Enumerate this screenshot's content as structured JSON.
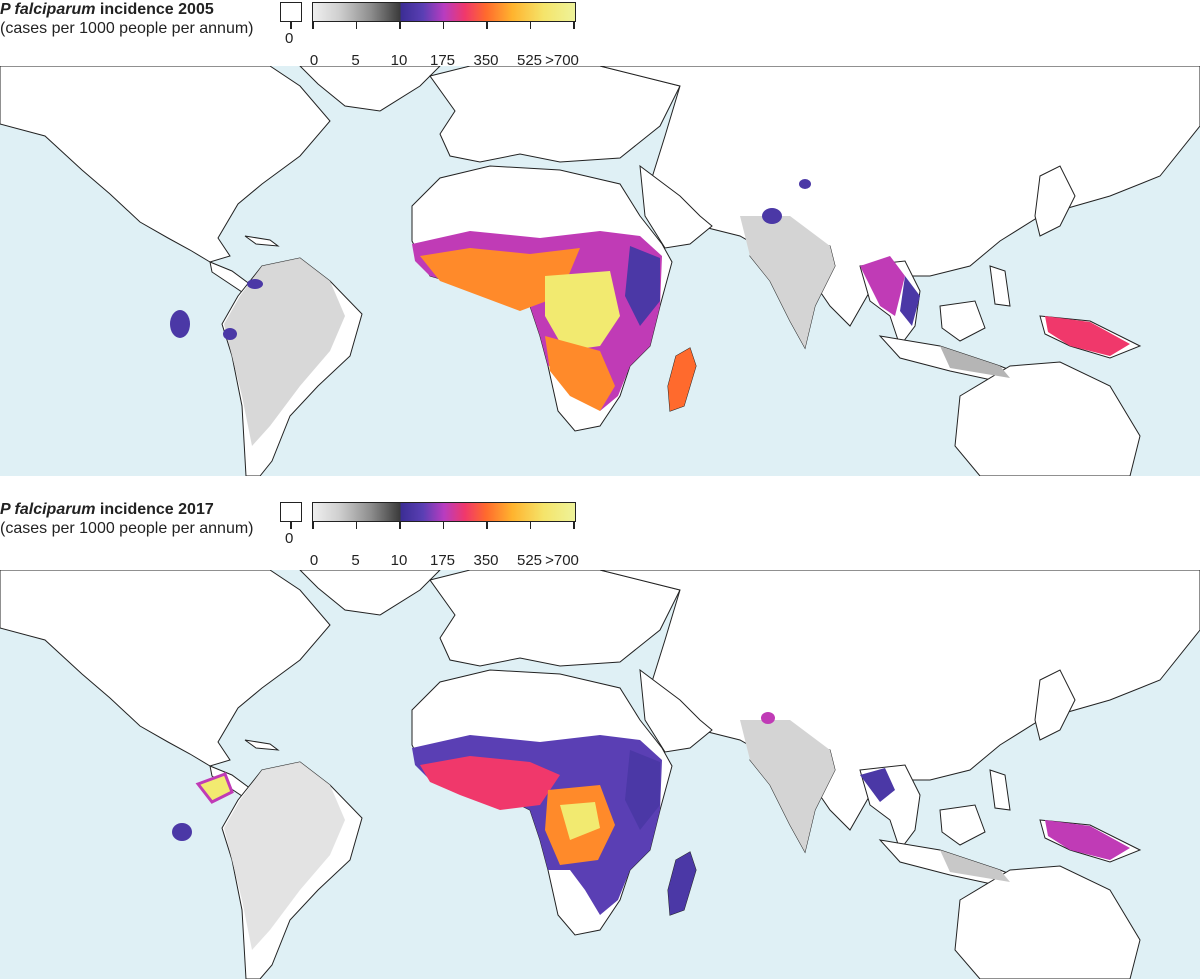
{
  "maps": [
    {
      "title_species": "P falciparum",
      "title_suffix": "incidence 2005",
      "subtitle": "(cases per 1000 people per annum)",
      "zero_label": "0",
      "ticks": [
        "0",
        "5",
        "10",
        "175",
        "350",
        "525",
        ">700"
      ]
    },
    {
      "title_species": "P falciparum",
      "title_suffix": "incidence 2017",
      "subtitle": "(cases per 1000 people per annum)",
      "zero_label": "0",
      "ticks": [
        "0",
        "5",
        "10",
        "175",
        "350",
        "525",
        ">700"
      ]
    }
  ],
  "colors": {
    "ocean": "#dff0f5",
    "land": "#ffffff",
    "border": "#222222",
    "low_grey": "#d4d4d4",
    "purple": "#4b38a6",
    "magenta": "#c03bb6",
    "red": "#f0386b",
    "orange": "#ff8a2a",
    "yellow": "#f2ea70"
  }
}
